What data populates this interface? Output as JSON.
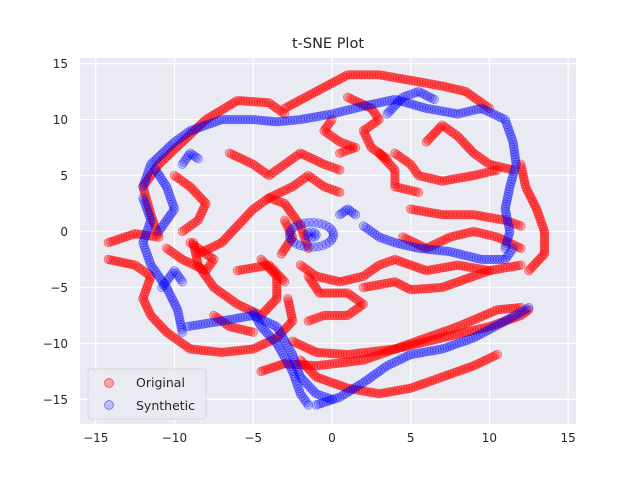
{
  "chart_data": {
    "type": "scatter",
    "title": "t-SNE Plot",
    "xlabel": "",
    "ylabel": "",
    "xlim": [
      -16,
      15.5
    ],
    "ylim": [
      -17.2,
      15.5
    ],
    "xticks": [
      -15,
      -10,
      -5,
      0,
      5,
      10,
      15
    ],
    "yticks": [
      -15,
      -10,
      -5,
      0,
      5,
      10,
      15
    ],
    "grid": true,
    "legend_position": "lower-left",
    "series": [
      {
        "name": "Original",
        "color": "#ff0000",
        "alpha": 0.3,
        "curves": [
          [
            [
              -14.2,
              -1
            ],
            [
              -12.5,
              -0.2
            ],
            [
              -11,
              -0.5
            ],
            [
              -11.5,
              1.5
            ],
            [
              -12,
              4
            ],
            [
              -11,
              6
            ],
            [
              -9.5,
              8
            ],
            [
              -8,
              10
            ],
            [
              -6,
              11.7
            ],
            [
              -4,
              11.5
            ],
            [
              -3,
              10.5
            ]
          ],
          [
            [
              -14.2,
              -2.5
            ],
            [
              -12.5,
              -3
            ],
            [
              -11.5,
              -4
            ],
            [
              -12,
              -6
            ],
            [
              -11.5,
              -7.5
            ],
            [
              -10.5,
              -9
            ],
            [
              -9,
              -10.5
            ],
            [
              -7,
              -10.8
            ],
            [
              -5,
              -10.5
            ],
            [
              -3.5,
              -9.5
            ],
            [
              -2.5,
              -8
            ],
            [
              -2.8,
              -6
            ]
          ],
          [
            [
              -8.5,
              -2
            ],
            [
              -7,
              -1
            ],
            [
              -6,
              0.5
            ],
            [
              -5,
              2
            ],
            [
              -4,
              3
            ],
            [
              -3,
              2.5
            ],
            [
              -2,
              0.5
            ],
            [
              -1.5,
              -1.5
            ]
          ],
          [
            [
              -6.5,
              7
            ],
            [
              -5,
              6
            ],
            [
              -4,
              5
            ],
            [
              -3,
              6
            ],
            [
              -2,
              7
            ],
            [
              -0.5,
              6
            ],
            [
              0.5,
              5.5
            ]
          ],
          [
            [
              -8.8,
              -1
            ],
            [
              -8.5,
              -3
            ],
            [
              -7.5,
              -5
            ],
            [
              -6,
              -6.5
            ],
            [
              -4.5,
              -7.5
            ],
            [
              -3.5,
              -6
            ],
            [
              -3.5,
              -4
            ],
            [
              -4.5,
              -2.5
            ]
          ],
          [
            [
              -10,
              5
            ],
            [
              -9,
              4
            ],
            [
              -8,
              2.5
            ],
            [
              -8.5,
              1
            ],
            [
              -9.5,
              0
            ]
          ],
          [
            [
              -10.5,
              -1.5
            ],
            [
              -9.5,
              -2.5
            ],
            [
              -8,
              -3.5
            ],
            [
              -7.5,
              -2.5
            ],
            [
              -9,
              -1
            ]
          ],
          [
            [
              -2.5,
              -9.8
            ],
            [
              -1,
              -10.8
            ],
            [
              1,
              -11
            ],
            [
              4,
              -10.5
            ],
            [
              7,
              -9.5
            ],
            [
              10,
              -8.5
            ],
            [
              12,
              -7.5
            ],
            [
              12.5,
              -7
            ]
          ],
          [
            [
              -4.5,
              -12.5
            ],
            [
              -3,
              -11.8
            ],
            [
              -1,
              -12
            ],
            [
              2,
              -11.5
            ],
            [
              5,
              -10
            ],
            [
              8,
              -8.5
            ],
            [
              10.5,
              -7
            ],
            [
              12,
              -6.8
            ]
          ],
          [
            [
              -2,
              -11.5
            ],
            [
              -1,
              -13
            ],
            [
              1,
              -14
            ],
            [
              3,
              -14.5
            ],
            [
              5,
              -14
            ],
            [
              7,
              -13
            ],
            [
              9,
              -12
            ],
            [
              10.5,
              -11
            ]
          ],
          [
            [
              -2,
              -3
            ],
            [
              -1,
              -4
            ],
            [
              0.5,
              -4.5
            ],
            [
              2,
              -4
            ],
            [
              3,
              -3
            ],
            [
              4,
              -2.5
            ],
            [
              6,
              -3.5
            ],
            [
              8,
              -3
            ],
            [
              10,
              -3.5
            ],
            [
              12,
              -3
            ]
          ],
          [
            [
              -1.5,
              -4
            ],
            [
              -0.8,
              -5.5
            ],
            [
              1,
              -5.5
            ],
            [
              2,
              -6.5
            ],
            [
              1,
              -7.5
            ],
            [
              -0.5,
              -7.5
            ],
            [
              -1.5,
              -8
            ]
          ],
          [
            [
              2,
              -5
            ],
            [
              4,
              -4.5
            ],
            [
              5,
              -5.2
            ],
            [
              7,
              -5
            ],
            [
              9,
              -4
            ],
            [
              10,
              -3.5
            ]
          ],
          [
            [
              -3,
              11
            ],
            [
              -1,
              12.5
            ],
            [
              1,
              14
            ],
            [
              3,
              14
            ],
            [
              5,
              13.5
            ],
            [
              7,
              13
            ],
            [
              8.5,
              12.5
            ],
            [
              10,
              11
            ]
          ],
          [
            [
              1,
              12
            ],
            [
              2.5,
              11
            ],
            [
              3,
              10
            ],
            [
              2,
              9
            ],
            [
              2.5,
              7.5
            ],
            [
              3.5,
              6.5
            ]
          ],
          [
            [
              0,
              10
            ],
            [
              -0.5,
              9
            ],
            [
              0.5,
              8
            ],
            [
              1.5,
              7.5
            ],
            [
              0.5,
              7
            ]
          ],
          [
            [
              4,
              7
            ],
            [
              5,
              6
            ],
            [
              5.5,
              5
            ],
            [
              7,
              4.5
            ],
            [
              9,
              5
            ],
            [
              10.5,
              5.5
            ]
          ],
          [
            [
              3,
              7
            ],
            [
              4,
              5.5
            ],
            [
              4,
              4
            ],
            [
              5.5,
              3.5
            ]
          ],
          [
            [
              12,
              6
            ],
            [
              12.3,
              4
            ],
            [
              13,
              2
            ],
            [
              13.5,
              0
            ],
            [
              13.5,
              -2
            ],
            [
              12.5,
              -3.5
            ]
          ],
          [
            [
              6,
              8
            ],
            [
              7,
              9.5
            ],
            [
              8,
              8.5
            ],
            [
              9,
              7
            ],
            [
              10,
              6
            ],
            [
              11.5,
              5.5
            ]
          ],
          [
            [
              5,
              2
            ],
            [
              7,
              1.5
            ],
            [
              9,
              1.5
            ],
            [
              11,
              1
            ],
            [
              12,
              0.5
            ]
          ],
          [
            [
              4.5,
              -0.5
            ],
            [
              6,
              -1.5
            ],
            [
              7.5,
              -0.5
            ],
            [
              9,
              0
            ],
            [
              10.5,
              -0.5
            ],
            [
              12,
              -1.5
            ]
          ],
          [
            [
              -4,
              3
            ],
            [
              -2.5,
              4
            ],
            [
              -1.5,
              5
            ],
            [
              -0.5,
              4
            ],
            [
              0.5,
              3.5
            ]
          ],
          [
            [
              -3,
              1
            ],
            [
              -2.5,
              -0.5
            ],
            [
              -3.2,
              -2
            ]
          ],
          [
            [
              -6,
              -3.5
            ],
            [
              -4,
              -3
            ],
            [
              -3,
              -4.5
            ]
          ],
          [
            [
              -7.5,
              -7.5
            ],
            [
              -6.5,
              -8.5
            ],
            [
              -5,
              -9
            ]
          ]
        ]
      },
      {
        "name": "Synthetic",
        "color": "#0000ff",
        "alpha": 0.2,
        "curves": [
          [
            [
              -12,
              4
            ],
            [
              -11.5,
              6
            ],
            [
              -10,
              8
            ],
            [
              -9,
              9
            ],
            [
              -7,
              10
            ],
            [
              -5,
              10
            ],
            [
              -3.5,
              9.8
            ],
            [
              -2,
              10
            ],
            [
              0,
              10.5
            ],
            [
              2,
              11.2
            ],
            [
              4,
              11.8
            ],
            [
              6,
              11
            ],
            [
              8,
              10.5
            ],
            [
              9.5,
              11
            ],
            [
              11,
              10
            ],
            [
              11.5,
              8
            ],
            [
              11.7,
              6
            ],
            [
              11.3,
              4
            ],
            [
              11,
              2
            ],
            [
              11.3,
              0
            ],
            [
              11,
              -1.5
            ]
          ],
          [
            [
              -12,
              3
            ],
            [
              -11.5,
              1
            ],
            [
              -12,
              -1
            ],
            [
              -11.5,
              -3
            ],
            [
              -10.5,
              -5
            ],
            [
              -9.8,
              -7
            ],
            [
              -9.5,
              -9
            ]
          ],
          [
            [
              -9.2,
              -8.5
            ],
            [
              -7,
              -8
            ],
            [
              -5,
              -7.5
            ],
            [
              -3.5,
              -8.5
            ],
            [
              -2.5,
              -11
            ],
            [
              -2,
              -13
            ],
            [
              -1,
              -14.5
            ],
            [
              0,
              -15
            ]
          ],
          [
            [
              -1,
              -15.5
            ],
            [
              0.5,
              -14.8
            ],
            [
              2,
              -13.5
            ],
            [
              3.5,
              -12
            ],
            [
              5,
              -11
            ],
            [
              7,
              -10.5
            ],
            [
              9,
              -9.5
            ],
            [
              11,
              -8
            ],
            [
              12.5,
              -6.8
            ]
          ],
          [
            [
              -5,
              -7.2
            ],
            [
              -4.5,
              -8.5
            ],
            [
              -3.5,
              -10
            ],
            [
              -2.5,
              -12.5
            ],
            [
              -2,
              -14.5
            ],
            [
              -1.5,
              -15.5
            ]
          ],
          [
            [
              2,
              0.5
            ],
            [
              3,
              -0.5
            ],
            [
              4,
              -1
            ],
            [
              5.5,
              -1.5
            ],
            [
              7.5,
              -1.8
            ],
            [
              9.5,
              -2.5
            ],
            [
              11,
              -2.5
            ],
            [
              11.5,
              -1.5
            ]
          ],
          [
            [
              -11,
              0
            ],
            [
              -10,
              2
            ],
            [
              -10.5,
              4
            ],
            [
              -11.2,
              5.5
            ]
          ],
          [
            [
              -9.5,
              6
            ],
            [
              -9,
              7
            ],
            [
              -8.5,
              6.5
            ]
          ],
          [
            [
              -10.8,
              -5
            ],
            [
              -10,
              -3.5
            ],
            [
              -9.5,
              -4.5
            ]
          ],
          [
            [
              3.5,
              10.5
            ],
            [
              4.5,
              12
            ],
            [
              5.5,
              12.5
            ],
            [
              6.5,
              11.8
            ]
          ],
          [
            [
              1.5,
              1.5
            ],
            [
              1,
              2
            ],
            [
              0.5,
              1.5
            ]
          ]
        ],
        "ring": {
          "center": [
            -1.3,
            -0.3
          ],
          "rx": 1.4,
          "ry": 1.1
        }
      }
    ]
  }
}
